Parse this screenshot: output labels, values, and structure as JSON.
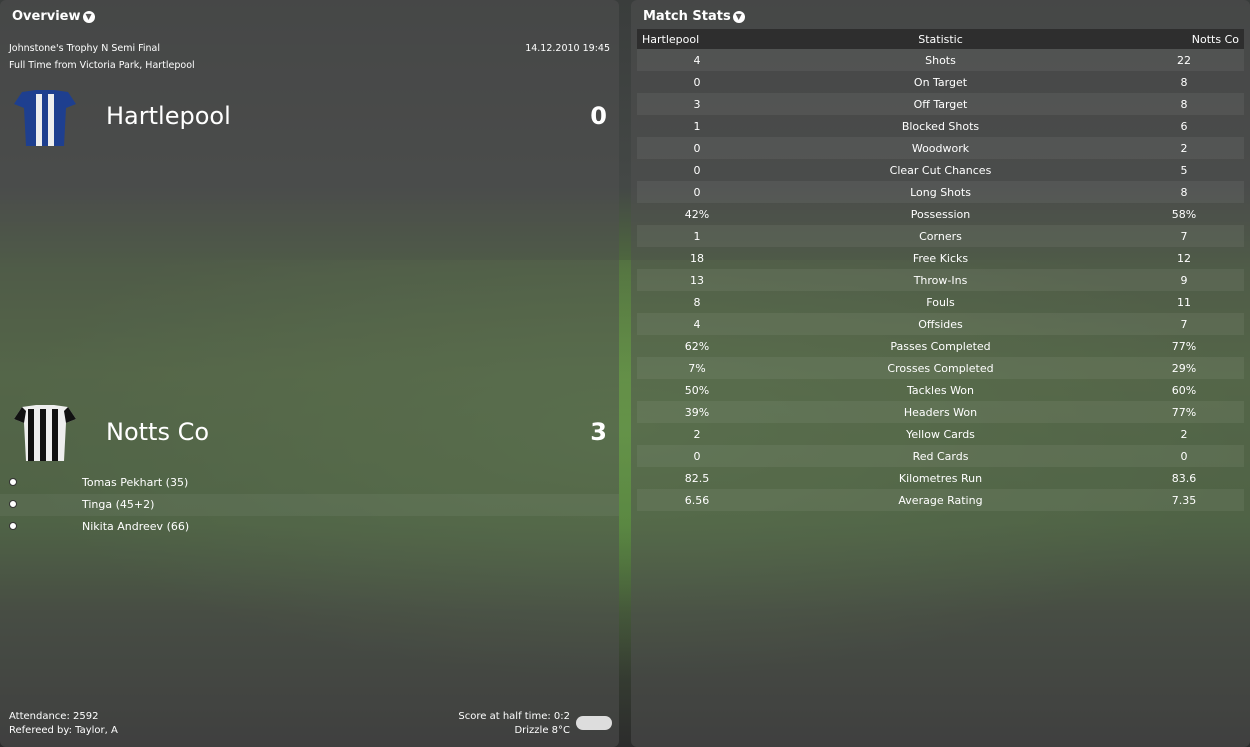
{
  "overview": {
    "title": "Overview",
    "competition": "Johnstone's Trophy N Semi Final",
    "datetime": "14.12.2010 19:45",
    "status": "Full Time from Victoria Park, Hartlepool",
    "home": {
      "name": "Hartlepool",
      "score": "0"
    },
    "away": {
      "name": "Notts Co",
      "score": "3"
    },
    "scorers": [
      "Tomas Pekhart (35)",
      "Tinga (45+2)",
      "Nikita Andreev (66)"
    ],
    "attendance": "Attendance: 2592",
    "referee": "Refereed by: Taylor, A",
    "half_time": "Score at half time: 0:2",
    "weather": "Drizzle 8°C"
  },
  "stats": {
    "title": "Match Stats",
    "headers": [
      "Hartlepool",
      "Statistic",
      "Notts Co"
    ],
    "rows": [
      [
        "4",
        "Shots",
        "22"
      ],
      [
        "0",
        "On Target",
        "8"
      ],
      [
        "3",
        "Off Target",
        "8"
      ],
      [
        "1",
        "Blocked Shots",
        "6"
      ],
      [
        "0",
        "Woodwork",
        "2"
      ],
      [
        "0",
        "Clear Cut Chances",
        "5"
      ],
      [
        "0",
        "Long Shots",
        "8"
      ],
      [
        "42%",
        "Possession",
        "58%"
      ],
      [
        "1",
        "Corners",
        "7"
      ],
      [
        "18",
        "Free Kicks",
        "12"
      ],
      [
        "13",
        "Throw-Ins",
        "9"
      ],
      [
        "8",
        "Fouls",
        "11"
      ],
      [
        "4",
        "Offsides",
        "7"
      ],
      [
        "62%",
        "Passes Completed",
        "77%"
      ],
      [
        "7%",
        "Crosses Completed",
        "29%"
      ],
      [
        "50%",
        "Tackles Won",
        "60%"
      ],
      [
        "39%",
        "Headers Won",
        "77%"
      ],
      [
        "2",
        "Yellow Cards",
        "2"
      ],
      [
        "0",
        "Red Cards",
        "0"
      ],
      [
        "82.5",
        "Kilometres Run",
        "83.6"
      ],
      [
        "6.56",
        "Average Rating",
        "7.35"
      ]
    ]
  }
}
